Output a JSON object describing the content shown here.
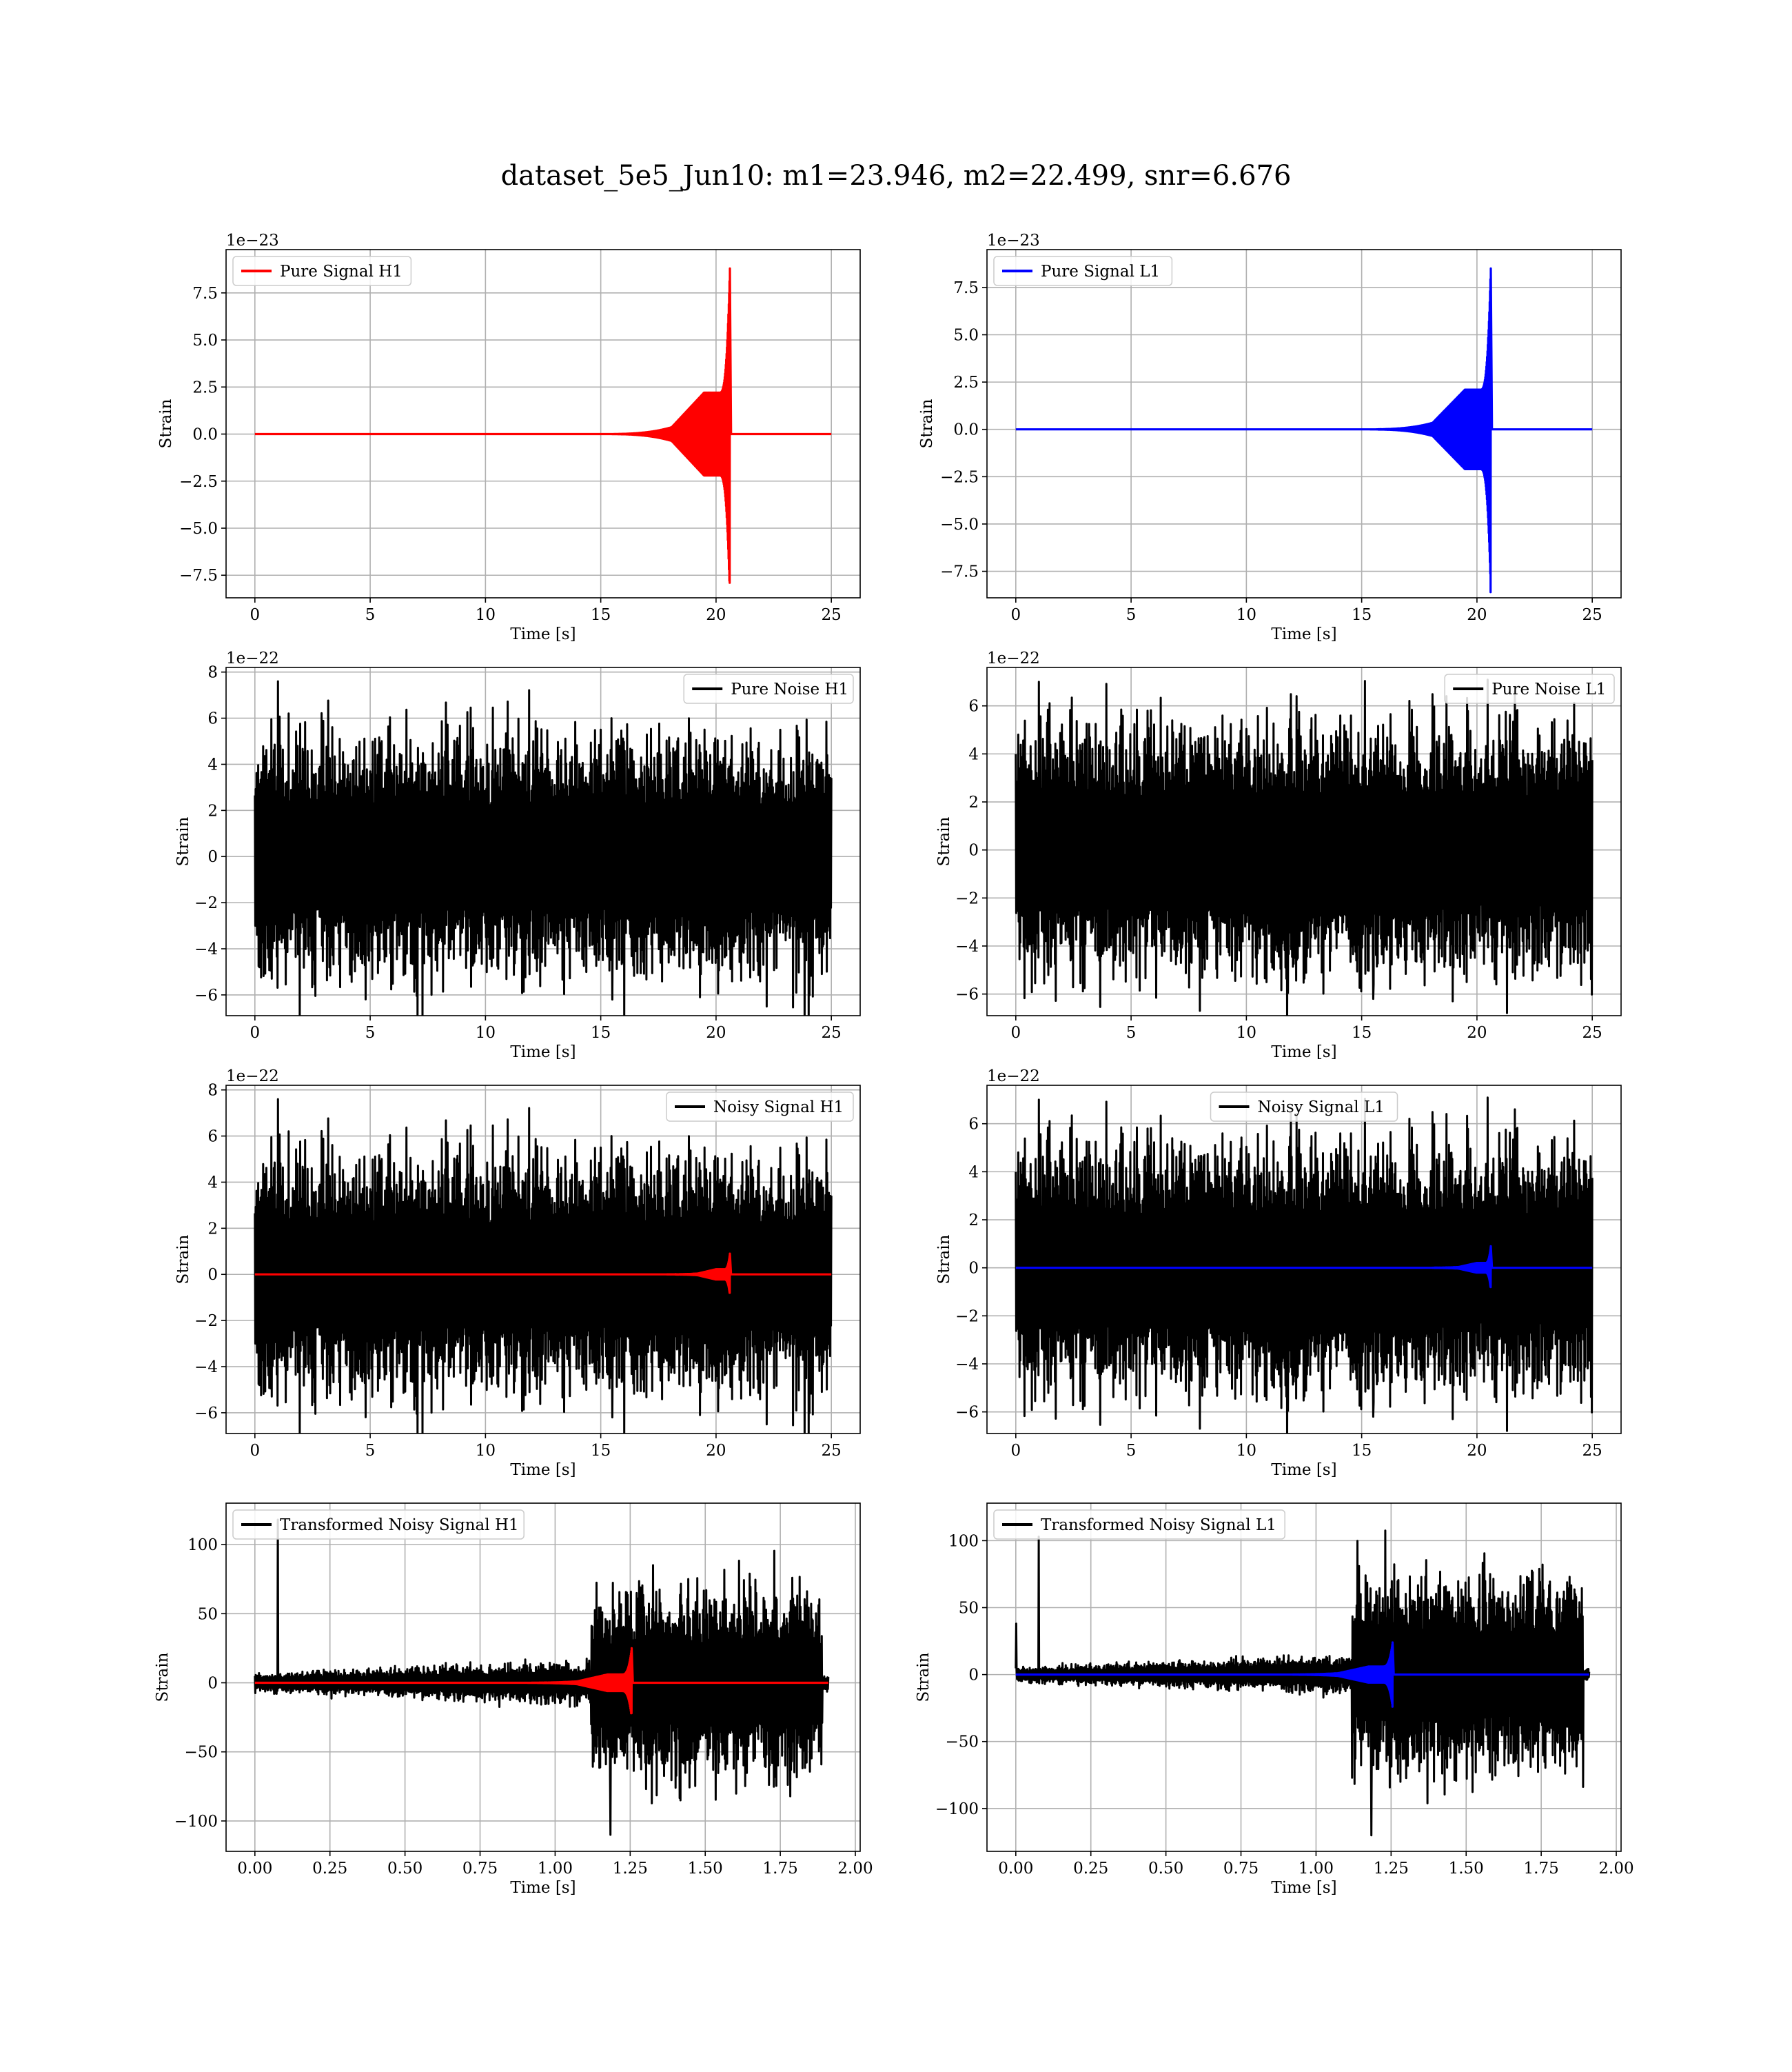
{
  "figure_title": "dataset_5e5_Jun10: m1=23.946, m2=22.499, snr=6.676",
  "colors": {
    "h1_signal": "#ff0000",
    "l1_signal": "#0000ff",
    "noise": "#000000",
    "grid": "#b0b0b0"
  },
  "chart_data": [
    {
      "id": "pure-signal-h1",
      "type": "line",
      "grid": true,
      "legend_position": "upper-left",
      "xlabel": "Time [s]",
      "ylabel": "Strain",
      "offset_text": "1e−23",
      "xlim": [
        -1.25,
        26.25
      ],
      "ylim": [
        -8.7,
        9.8
      ],
      "xticks": [
        0,
        5,
        10,
        15,
        20,
        25
      ],
      "xtick_labels": [
        "0",
        "5",
        "10",
        "15",
        "20",
        "25"
      ],
      "yticks": [
        -7.5,
        -5.0,
        -2.5,
        0.0,
        2.5,
        5.0,
        7.5
      ],
      "ytick_labels": [
        "−7.5",
        "−5.0",
        "−2.5",
        "0.0",
        "2.5",
        "5.0",
        "7.5"
      ],
      "series": [
        {
          "name": "Pure Signal H1",
          "color": "#ff0000",
          "kind": "chirp",
          "x_range": [
            0,
            25
          ],
          "merger_t": 20.6,
          "start_t": 15.0,
          "plateau_amp": 2.2,
          "peak_pos": 8.8,
          "peak_neg": -7.9
        }
      ]
    },
    {
      "id": "pure-signal-l1",
      "type": "line",
      "grid": true,
      "legend_position": "upper-left",
      "xlabel": "Time [s]",
      "ylabel": "Strain",
      "offset_text": "1e−23",
      "xlim": [
        -1.25,
        26.25
      ],
      "ylim": [
        -8.9,
        9.5
      ],
      "xticks": [
        0,
        5,
        10,
        15,
        20,
        25
      ],
      "xtick_labels": [
        "0",
        "5",
        "10",
        "15",
        "20",
        "25"
      ],
      "yticks": [
        -7.5,
        -5.0,
        -2.5,
        0.0,
        2.5,
        5.0,
        7.5
      ],
      "ytick_labels": [
        "−7.5",
        "−5.0",
        "−2.5",
        "0.0",
        "2.5",
        "5.0",
        "7.5"
      ],
      "series": [
        {
          "name": "Pure Signal L1",
          "color": "#0000ff",
          "kind": "chirp",
          "x_range": [
            0,
            25
          ],
          "merger_t": 20.6,
          "start_t": 15.0,
          "plateau_amp": 2.1,
          "peak_pos": 8.5,
          "peak_neg": -8.6
        }
      ]
    },
    {
      "id": "pure-noise-h1",
      "type": "line",
      "grid": true,
      "legend_position": "upper-right",
      "xlabel": "Time [s]",
      "ylabel": "Strain",
      "offset_text": "1e−22",
      "xlim": [
        -1.25,
        26.25
      ],
      "ylim": [
        -6.9,
        8.2
      ],
      "xticks": [
        0,
        5,
        10,
        15,
        20,
        25
      ],
      "xtick_labels": [
        "0",
        "5",
        "10",
        "15",
        "20",
        "25"
      ],
      "yticks": [
        -6,
        -4,
        -2,
        0,
        2,
        4,
        6,
        8
      ],
      "ytick_labels": [
        "−6",
        "−4",
        "−2",
        "0",
        "2",
        "4",
        "6",
        "8"
      ],
      "series": [
        {
          "name": "Pure Noise H1",
          "color": "#000000",
          "kind": "noise",
          "x_range": [
            0,
            25
          ],
          "band": 4.0,
          "max": 7.6,
          "min": -6.2,
          "seed": 11
        }
      ]
    },
    {
      "id": "pure-noise-l1",
      "type": "line",
      "grid": true,
      "legend_position": "upper-right",
      "xlabel": "Time [s]",
      "ylabel": "Strain",
      "offset_text": "1e−22",
      "xlim": [
        -1.25,
        26.25
      ],
      "ylim": [
        -6.9,
        7.6
      ],
      "xticks": [
        0,
        5,
        10,
        15,
        20,
        25
      ],
      "xtick_labels": [
        "0",
        "5",
        "10",
        "15",
        "20",
        "25"
      ],
      "yticks": [
        -6,
        -4,
        -2,
        0,
        2,
        4,
        6
      ],
      "ytick_labels": [
        "−6",
        "−4",
        "−2",
        "0",
        "2",
        "4",
        "6"
      ],
      "series": [
        {
          "name": "Pure Noise L1",
          "color": "#000000",
          "kind": "noise",
          "x_range": [
            0,
            25
          ],
          "band": 4.0,
          "max": 7.0,
          "min": -6.2,
          "seed": 23
        }
      ]
    },
    {
      "id": "noisy-signal-h1",
      "type": "line",
      "grid": true,
      "legend_position": "upper-right",
      "xlabel": "Time [s]",
      "ylabel": "Strain",
      "offset_text": "1e−22",
      "xlim": [
        -1.25,
        26.25
      ],
      "ylim": [
        -6.9,
        8.2
      ],
      "xticks": [
        0,
        5,
        10,
        15,
        20,
        25
      ],
      "xtick_labels": [
        "0",
        "5",
        "10",
        "15",
        "20",
        "25"
      ],
      "yticks": [
        -6,
        -4,
        -2,
        0,
        2,
        4,
        6,
        8
      ],
      "ytick_labels": [
        "−6",
        "−4",
        "−2",
        "0",
        "2",
        "4",
        "6",
        "8"
      ],
      "series": [
        {
          "name": "Noisy Signal H1",
          "color": "#000000",
          "kind": "noise",
          "x_range": [
            0,
            25
          ],
          "band": 4.0,
          "max": 7.6,
          "min": -6.2,
          "seed": 11
        },
        {
          "color": "#ff0000",
          "kind": "chirp",
          "x_range": [
            0,
            25
          ],
          "merger_t": 20.6,
          "start_t": 17.5,
          "plateau_amp": 0.22,
          "peak_pos": 0.9,
          "peak_neg": -0.8
        }
      ]
    },
    {
      "id": "noisy-signal-l1",
      "type": "line",
      "grid": true,
      "legend_position": "upper-center",
      "xlabel": "Time [s]",
      "ylabel": "Strain",
      "offset_text": "1e−22",
      "xlim": [
        -1.25,
        26.25
      ],
      "ylim": [
        -6.9,
        7.6
      ],
      "xticks": [
        0,
        5,
        10,
        15,
        20,
        25
      ],
      "xtick_labels": [
        "0",
        "5",
        "10",
        "15",
        "20",
        "25"
      ],
      "yticks": [
        -6,
        -4,
        -2,
        0,
        2,
        4,
        6
      ],
      "ytick_labels": [
        "−6",
        "−4",
        "−2",
        "0",
        "2",
        "4",
        "6"
      ],
      "series": [
        {
          "name": "Noisy Signal L1",
          "color": "#000000",
          "kind": "noise",
          "x_range": [
            0,
            25
          ],
          "band": 4.0,
          "max": 7.0,
          "min": -6.2,
          "seed": 23
        },
        {
          "color": "#0000ff",
          "kind": "chirp",
          "x_range": [
            0,
            25
          ],
          "merger_t": 20.6,
          "start_t": 17.5,
          "plateau_amp": 0.2,
          "peak_pos": 0.9,
          "peak_neg": -0.8
        }
      ]
    },
    {
      "id": "transformed-noisy-signal-h1",
      "type": "line",
      "grid": true,
      "legend_position": "upper-left",
      "xlabel": "Time [s]",
      "ylabel": "Strain",
      "offset_text": "",
      "xlim": [
        -0.096,
        2.016
      ],
      "ylim": [
        -122,
        130
      ],
      "xticks": [
        0.0,
        0.25,
        0.5,
        0.75,
        1.0,
        1.25,
        1.5,
        1.75,
        2.0
      ],
      "xtick_labels": [
        "0.00",
        "0.25",
        "0.50",
        "0.75",
        "1.00",
        "1.25",
        "1.50",
        "1.75",
        "2.00"
      ],
      "yticks": [
        -100,
        -50,
        0,
        50,
        100
      ],
      "ytick_labels": [
        "−100",
        "−50",
        "0",
        "50",
        "100"
      ],
      "series": [
        {
          "name": "Transformed Noisy Signal H1",
          "color": "#000000",
          "kind": "whitened",
          "x_range": [
            0,
            1.91
          ],
          "step_t": 1.12,
          "low_band": 8,
          "high_band": 50,
          "max": 118,
          "min": -110,
          "seed": 37
        },
        {
          "color": "#ff0000",
          "kind": "chirp",
          "x_range": [
            0,
            1.91
          ],
          "merger_t": 1.255,
          "start_t": 0.85,
          "plateau_amp": 6,
          "peak_pos": 25,
          "peak_neg": -22
        }
      ]
    },
    {
      "id": "transformed-noisy-signal-l1",
      "type": "line",
      "grid": true,
      "legend_position": "upper-left",
      "xlabel": "Time [s]",
      "ylabel": "Strain",
      "offset_text": "",
      "xlim": [
        -0.096,
        2.016
      ],
      "ylim": [
        -132,
        128
      ],
      "xticks": [
        0.0,
        0.25,
        0.5,
        0.75,
        1.0,
        1.25,
        1.5,
        1.75,
        2.0
      ],
      "xtick_labels": [
        "0.00",
        "0.25",
        "0.50",
        "0.75",
        "1.00",
        "1.25",
        "1.50",
        "1.75",
        "2.00"
      ],
      "yticks": [
        -100,
        -50,
        0,
        50,
        100
      ],
      "ytick_labels": [
        "−100",
        "−50",
        "0",
        "50",
        "100"
      ],
      "series": [
        {
          "name": "Transformed Noisy Signal L1",
          "color": "#000000",
          "kind": "whitened",
          "x_range": [
            0,
            1.91
          ],
          "step_t": 1.12,
          "low_band": 7,
          "high_band": 55,
          "max": 103,
          "min": -120,
          "seed": 53,
          "initial_spike": 38
        },
        {
          "color": "#0000ff",
          "kind": "chirp",
          "x_range": [
            0,
            1.91
          ],
          "merger_t": 1.255,
          "start_t": 0.85,
          "plateau_amp": 6,
          "peak_pos": 24,
          "peak_neg": -24
        }
      ]
    }
  ]
}
